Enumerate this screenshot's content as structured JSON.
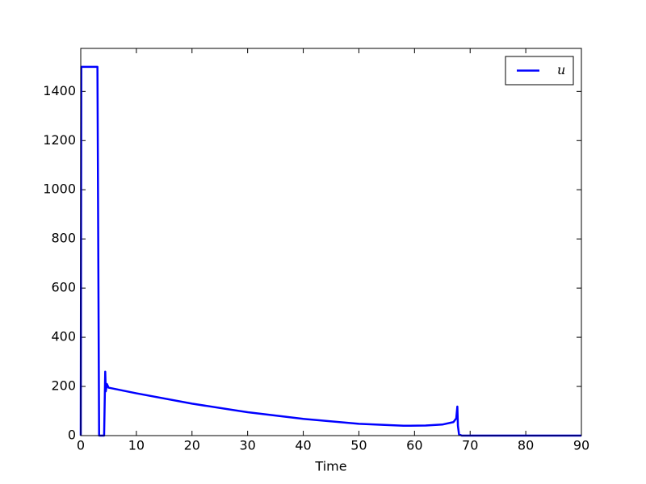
{
  "chart_data": {
    "type": "line",
    "x_label": "Time",
    "x": [
      0,
      0.1,
      3,
      3.3,
      4.2,
      4.4,
      4.5,
      4.7,
      5,
      10,
      20,
      30,
      40,
      50,
      58,
      62,
      65,
      67,
      67.5,
      67.7,
      67.8,
      68,
      68.5,
      90
    ],
    "series": [
      {
        "name": "u",
        "color": "#0000ff",
        "values": [
          0,
          1500,
          1500,
          0,
          0,
          260,
          180,
          210,
          195,
          172,
          130,
          95,
          68,
          48,
          40,
          41,
          45,
          55,
          70,
          118,
          40,
          5,
          0,
          0
        ]
      }
    ],
    "xlim": [
      0,
      90
    ],
    "xticks": [
      0,
      10,
      20,
      30,
      40,
      50,
      60,
      70,
      80,
      90
    ],
    "ylim": [
      0,
      1575
    ],
    "yticks": [
      0,
      200,
      400,
      600,
      800,
      1000,
      1200,
      1400
    ],
    "legend": "upper right"
  }
}
